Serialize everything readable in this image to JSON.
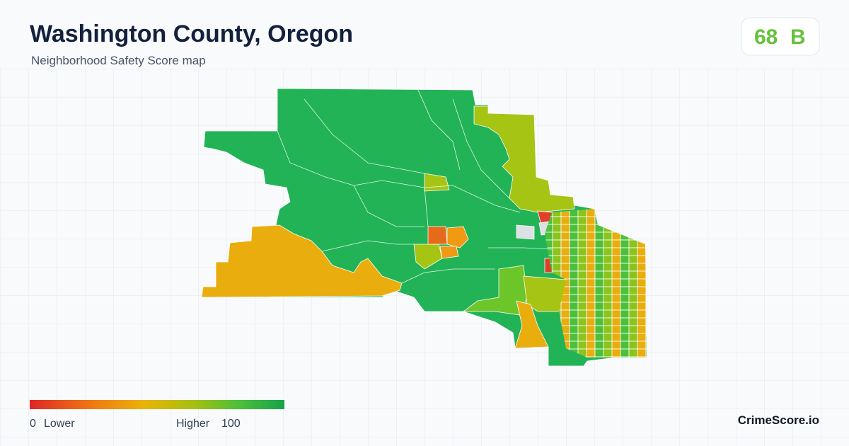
{
  "header": {
    "title": "Washington County, Oregon",
    "subtitle": "Neighborhood Safety Score map"
  },
  "score": {
    "value": 68,
    "grade": "B"
  },
  "legend": {
    "min": 0,
    "min_label": "Lower",
    "max_label": "Higher",
    "max": 100
  },
  "brand": "CrimeScore.io"
}
